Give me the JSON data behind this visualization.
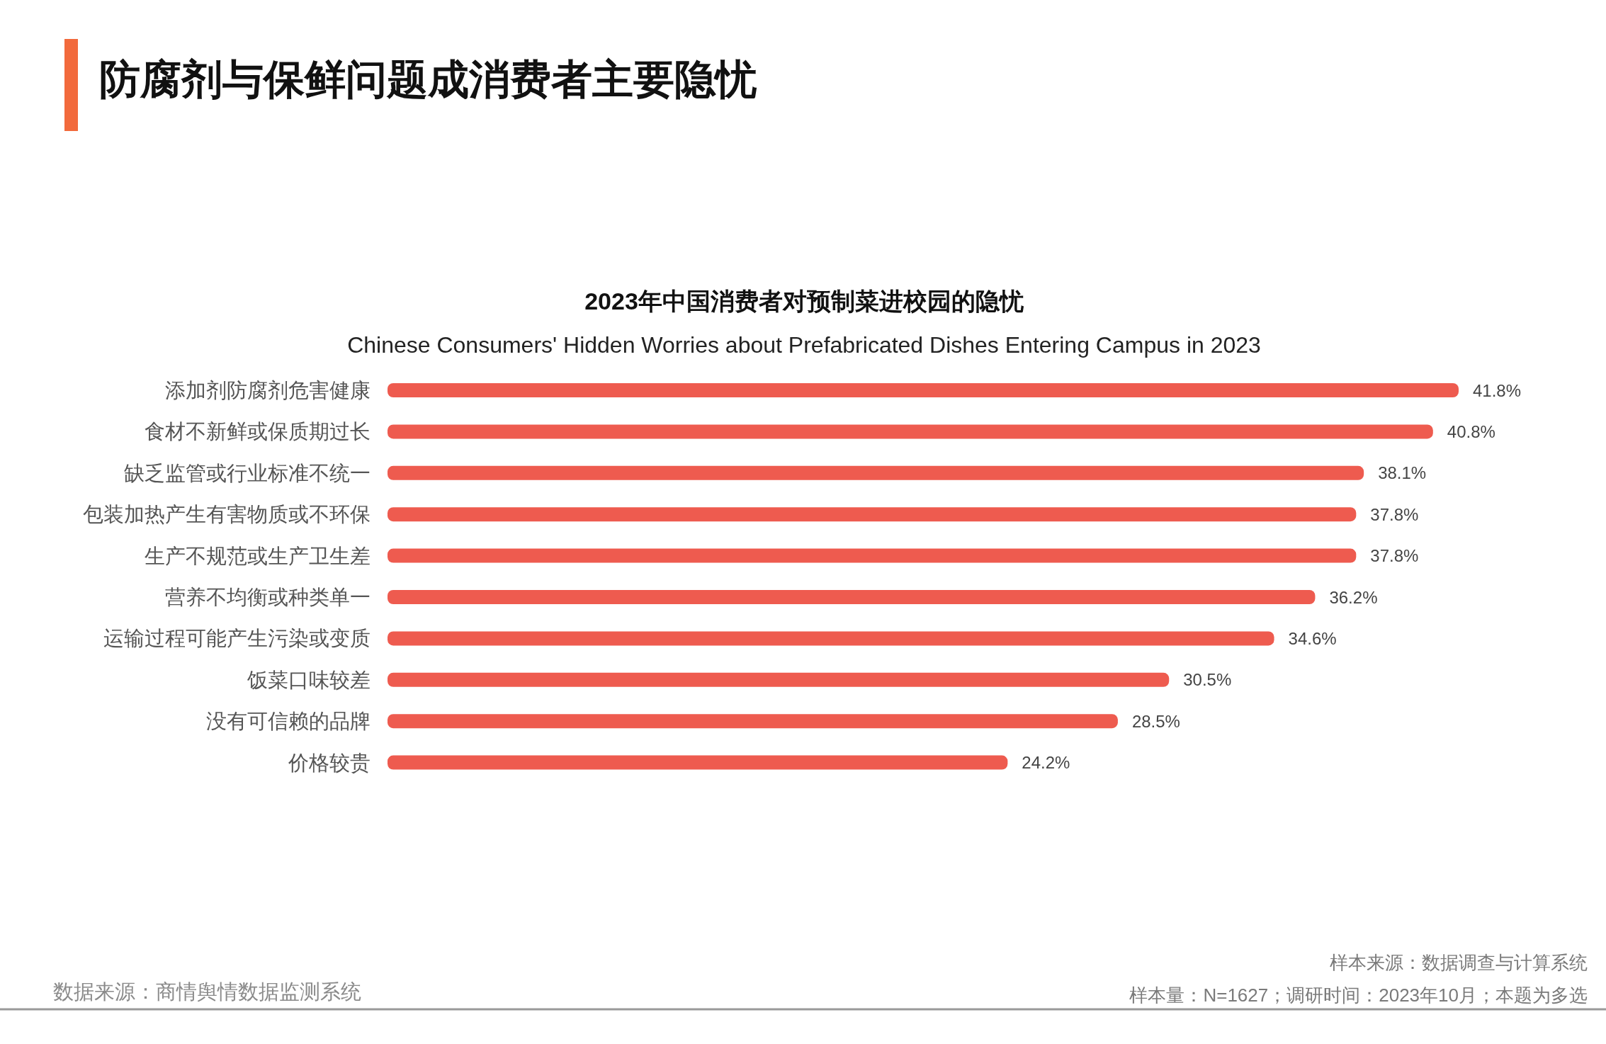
{
  "chart_data": {
    "type": "bar",
    "orientation": "horizontal",
    "title": "防腐剂与保鲜问题成消费者主要隐忧",
    "subtitle": "2023年中国消费者对预制菜进校园的隐忧",
    "categories": [
      "添加剂防腐剂危害健康",
      "食材不新鲜或保质期过长",
      "缺乏监管或行业标准不统一",
      "包装加热产生有害物质或不环保",
      "生产不规范或生产卫生差",
      "营养不均衡或种类单一",
      "运输过程可能产生污染或变质",
      "饭菜口味较差",
      "没有可信赖的品牌",
      "价格较贵"
    ],
    "values": [
      41.8,
      40.8,
      38.1,
      37.8,
      37.8,
      36.2,
      34.6,
      30.5,
      28.5,
      24.2
    ],
    "color": "#ee5b4f",
    "value_labels": [
      "41.8%",
      "40.8%",
      "38.1%",
      "37.8%",
      "37.8%",
      "36.2%",
      "34.6%",
      "30.5%",
      "28.5%",
      "24.2%"
    ],
    "annotations": [
      "Chinese Consumers' Hidden Worries about Prefabricated Dishes Entering Campus in 2023",
      "数据来源：商情舆情数据监测系统",
      "样本来源：数据调查与计算系统",
      "样本量：N=1627；调研时间：2023年10月；本题为多选"
    ]
  }
}
